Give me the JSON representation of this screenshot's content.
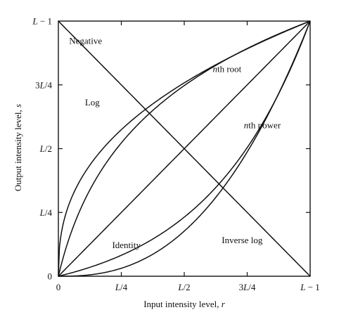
{
  "chart_data": {
    "type": "line",
    "title": "",
    "xlabel_parts": [
      "Input intensity level, ",
      "r"
    ],
    "ylabel_parts": [
      "Output intensity level, ",
      "s"
    ],
    "x_ticks": [
      {
        "value": 0,
        "label": "0"
      },
      {
        "value": 0.25,
        "label": "L/4"
      },
      {
        "value": 0.5,
        "label": "L/2"
      },
      {
        "value": 0.75,
        "label": "3L/4"
      },
      {
        "value": 1,
        "label": "L − 1"
      }
    ],
    "y_ticks": [
      {
        "value": 0,
        "label": "0"
      },
      {
        "value": 0.25,
        "label": "L/4"
      },
      {
        "value": 0.5,
        "label": "L/2"
      },
      {
        "value": 0.75,
        "label": "3L/4"
      },
      {
        "value": 1,
        "label": "L − 1"
      }
    ],
    "xlim": [
      0,
      1
    ],
    "ylim": [
      0,
      1
    ],
    "grid": false,
    "series": [
      {
        "name": "Negative",
        "function": "negative"
      },
      {
        "name": "Log",
        "function": "log"
      },
      {
        "name": "nth root",
        "function": "nth_root"
      },
      {
        "name": "Identity",
        "function": "identity"
      },
      {
        "name": "nth power",
        "function": "nth_power"
      },
      {
        "name": "Inverse log",
        "function": "inverse_log"
      }
    ],
    "labels": [
      {
        "text": "Negative",
        "x": 0.108,
        "y": 0.91
      },
      {
        "text": "Log",
        "x": 0.135,
        "y": 0.67
      },
      {
        "text": "nth root",
        "x": 0.67,
        "y": 0.8
      },
      {
        "text": "nth power",
        "x": 0.81,
        "y": 0.58
      },
      {
        "text": "Identity",
        "x": 0.27,
        "y": 0.11
      },
      {
        "text": "Inverse log",
        "x": 0.73,
        "y": 0.13
      }
    ]
  }
}
